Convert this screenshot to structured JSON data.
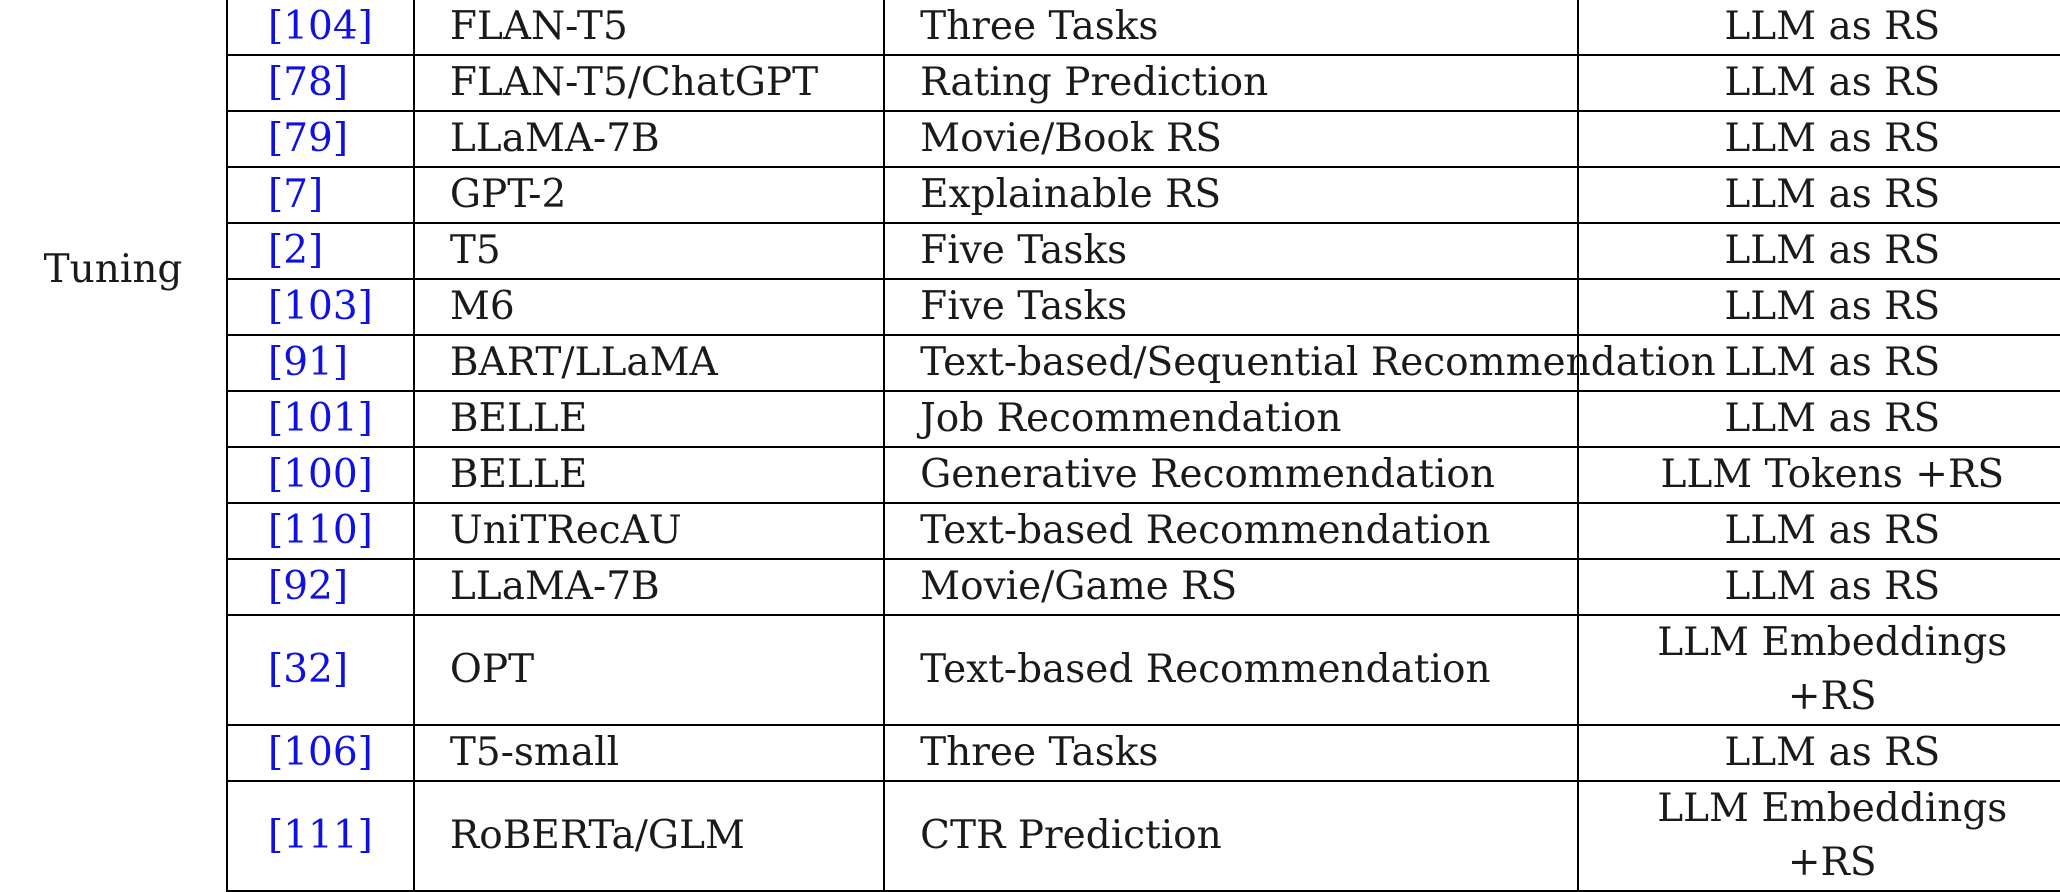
{
  "group_label": "Tuning",
  "colors": {
    "citation": "#1010e0",
    "text": "#1a1a1a",
    "rule": "#000000"
  },
  "rows": [
    {
      "ref": "[104]",
      "model": "FLAN-T5",
      "task": "Three Tasks",
      "type": "LLM as RS"
    },
    {
      "ref": "[78]",
      "model": "FLAN-T5/ChatGPT",
      "task": "Rating Prediction",
      "type": "LLM as RS"
    },
    {
      "ref": "[79]",
      "model": "LLaMA-7B",
      "task": "Movie/Book RS",
      "type": "LLM as RS"
    },
    {
      "ref": "[7]",
      "model": "GPT-2",
      "task": "Explainable RS",
      "type": "LLM as RS"
    },
    {
      "ref": "[2]",
      "model": "T5",
      "task": "Five Tasks",
      "type": "LLM as RS"
    },
    {
      "ref": "[103]",
      "model": "M6",
      "task": "Five Tasks",
      "type": "LLM as RS"
    },
    {
      "ref": "[91]",
      "model": "BART/LLaMA",
      "task": "Text-based/Sequential Recommendation",
      "type": "LLM as RS"
    },
    {
      "ref": "[101]",
      "model": "BELLE",
      "task": "Job Recommendation",
      "type": "LLM as RS"
    },
    {
      "ref": "[100]",
      "model": "BELLE",
      "task": "Generative Recommendation",
      "type": "LLM Tokens +RS"
    },
    {
      "ref": "[110]",
      "model": "UniTRecAU",
      "task": "Text-based Recommendation",
      "type": "LLM as RS"
    },
    {
      "ref": "[92]",
      "model": "LLaMA-7B",
      "task": "Movie/Game RS",
      "type": "LLM as RS"
    },
    {
      "ref": "[32]",
      "model": "OPT",
      "task": "Text-based Recommendation",
      "type_line1": "LLM Embeddings",
      "type_line2": "+RS"
    },
    {
      "ref": "[106]",
      "model": "T5-small",
      "task": "Three Tasks",
      "type": "LLM as RS"
    },
    {
      "ref": "[111]",
      "model": "RoBERTa/GLM",
      "task": "CTR Prediction",
      "type_line1": "LLM Embeddings",
      "type_line2": "+RS"
    }
  ]
}
